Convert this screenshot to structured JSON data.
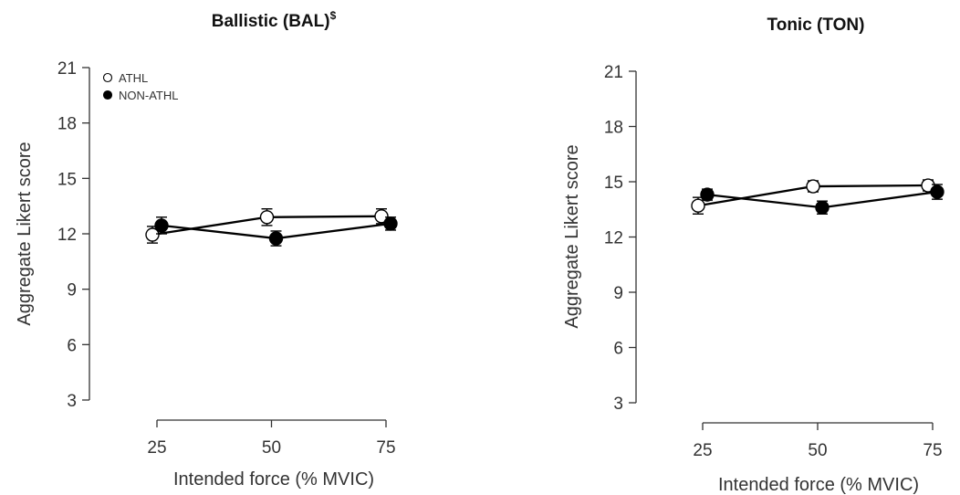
{
  "chart_data": [
    {
      "type": "line",
      "title": "Ballistic (BAL)",
      "title_superscript": "$",
      "xlabel": "Intended force (% MVIC)",
      "ylabel": "Aggregate Likert score",
      "x_ticks": [
        "25",
        "50",
        "75"
      ],
      "y_ticks": [
        "3",
        "6",
        "9",
        "12",
        "15",
        "18",
        "21"
      ],
      "xlim": [
        25,
        75
      ],
      "ylim": [
        3,
        21
      ],
      "legend": {
        "position": "top-left",
        "entries": [
          "ATHL",
          "NON-ATHL"
        ]
      },
      "series": [
        {
          "name": "ATHL",
          "marker": "open-circle",
          "color": "#ffffff",
          "x": [
            25,
            50,
            75
          ],
          "y": [
            11.95,
            12.9,
            12.95
          ],
          "err": [
            0.45,
            0.45,
            0.4
          ]
        },
        {
          "name": "NON-ATHL",
          "marker": "filled-circle",
          "color": "#000000",
          "x": [
            25,
            50,
            75
          ],
          "y": [
            12.45,
            11.75,
            12.55
          ],
          "err": [
            0.45,
            0.4,
            0.35
          ]
        }
      ]
    },
    {
      "type": "line",
      "title": "Tonic (TON)",
      "title_superscript": "",
      "xlabel": "Intended force (% MVIC)",
      "ylabel": "Aggregate Likert score",
      "x_ticks": [
        "25",
        "50",
        "75"
      ],
      "y_ticks": [
        "3",
        "6",
        "9",
        "12",
        "15",
        "18",
        "21"
      ],
      "xlim": [
        25,
        75
      ],
      "ylim": [
        3,
        21
      ],
      "legend": null,
      "series": [
        {
          "name": "ATHL",
          "marker": "open-circle",
          "color": "#ffffff",
          "x": [
            25,
            50,
            75
          ],
          "y": [
            13.7,
            14.75,
            14.8
          ],
          "err": [
            0.45,
            0.3,
            0.3
          ]
        },
        {
          "name": "NON-ATHL",
          "marker": "filled-circle",
          "color": "#000000",
          "x": [
            25,
            50,
            75
          ],
          "y": [
            14.3,
            13.6,
            14.45
          ],
          "err": [
            0.3,
            0.35,
            0.4
          ]
        }
      ]
    }
  ]
}
